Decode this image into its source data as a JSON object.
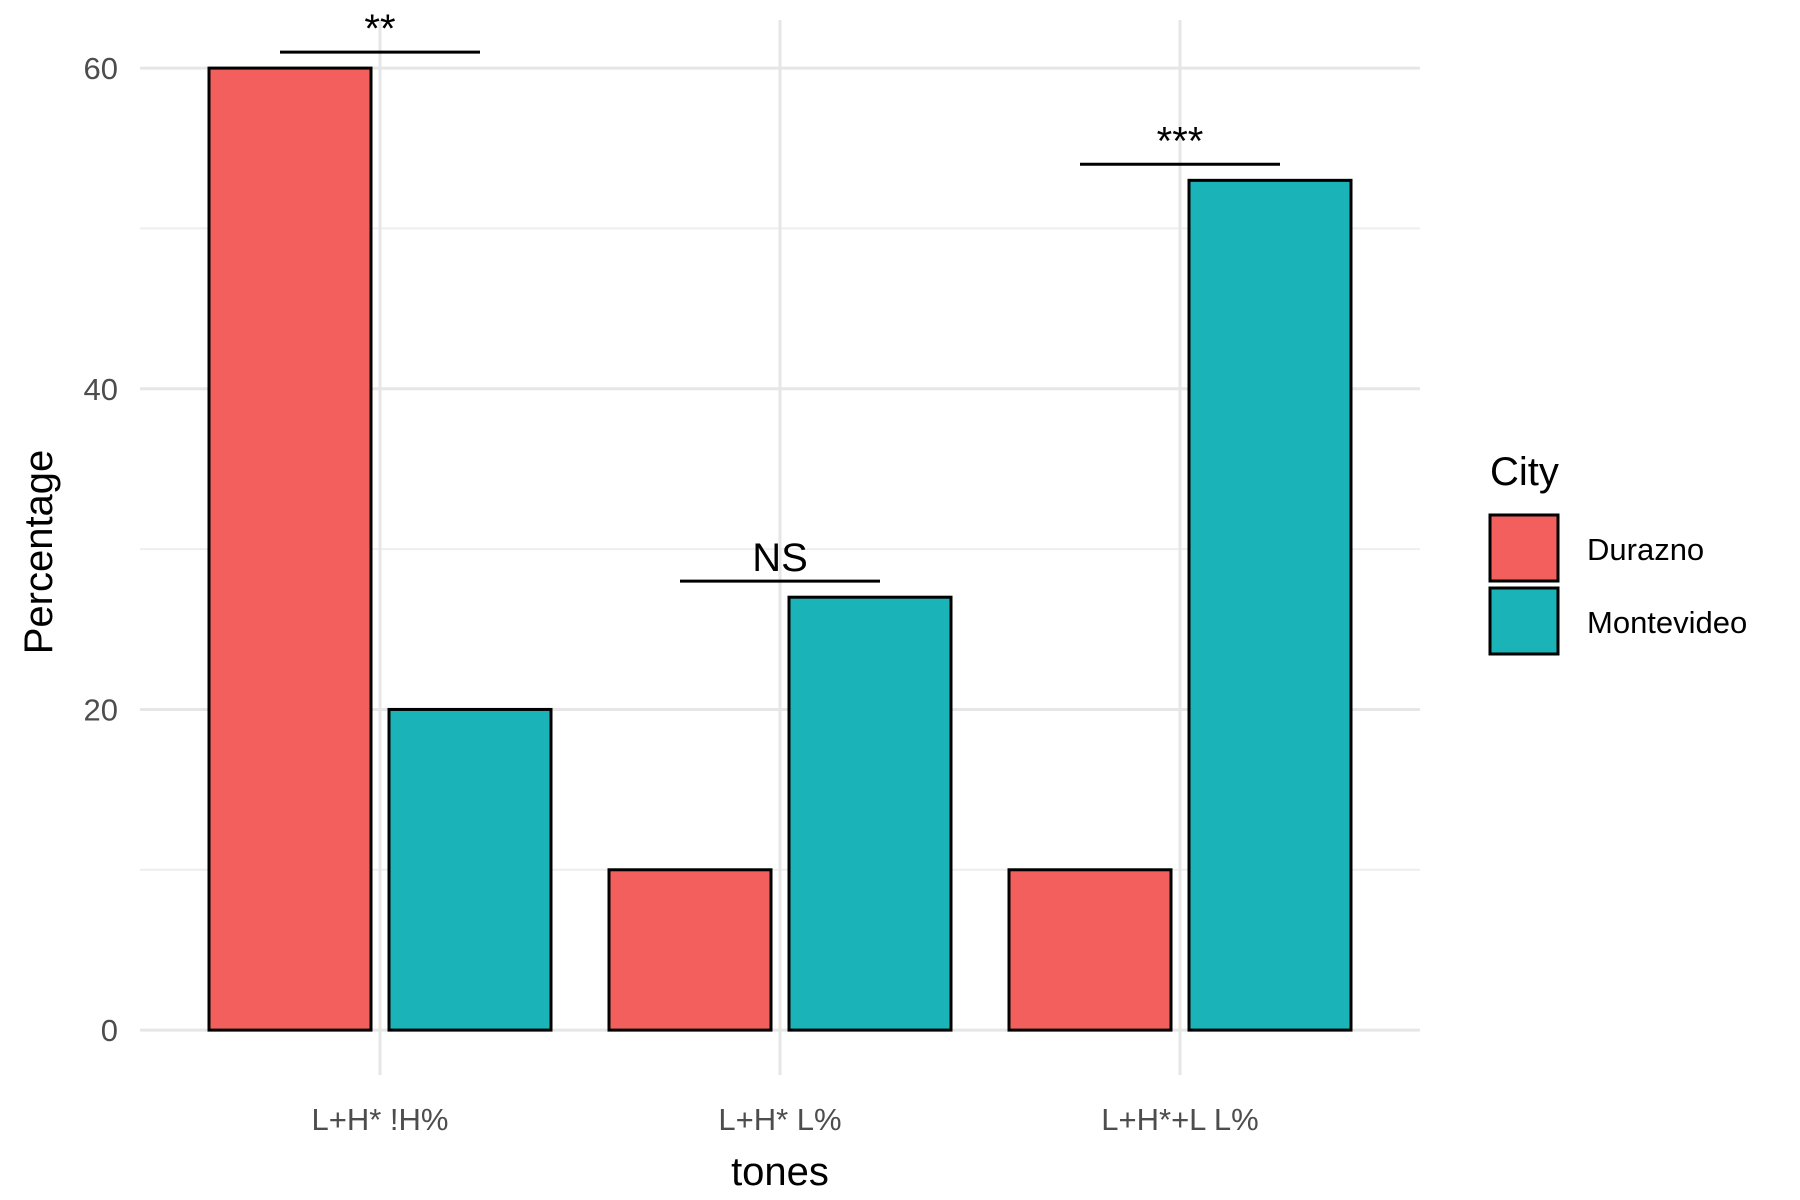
{
  "chart_data": {
    "type": "bar",
    "categories": [
      "L+H* !H%",
      "L+H* L%",
      "L+H*+L L%"
    ],
    "series": [
      {
        "name": "Durazno",
        "values": [
          60,
          10,
          10
        ],
        "color": "#F25F5C"
      },
      {
        "name": "Montevideo",
        "values": [
          20,
          27,
          53
        ],
        "color": "#1AB3B7"
      }
    ],
    "xlabel": "tones",
    "ylabel": "Percentage",
    "ylim": [
      -2.8,
      63
    ],
    "yticks": [
      0,
      20,
      40,
      60
    ],
    "ytick_labels": [
      "0",
      "20",
      "40",
      "60"
    ],
    "grid": true,
    "legend": {
      "title": "City",
      "position": "right"
    },
    "annotations": [
      {
        "category": "L+H* !H%",
        "label": "**",
        "y": 61
      },
      {
        "category": "L+H* L%",
        "label": "NS",
        "y": 28
      },
      {
        "category": "L+H*+L L%",
        "label": "***",
        "y": 54
      }
    ]
  }
}
